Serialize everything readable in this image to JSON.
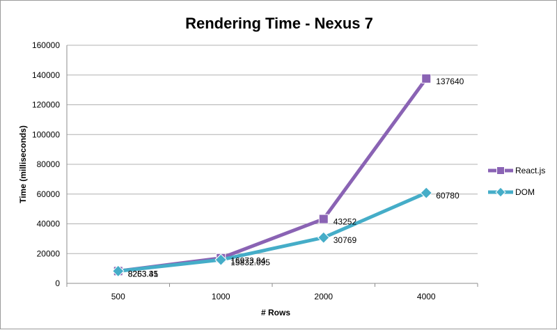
{
  "chart_data": {
    "type": "line",
    "title": "Rendering Time - Nexus 7",
    "xlabel": "# Rows",
    "ylabel": "Time (milliseconds)",
    "categories": [
      "500",
      "1000",
      "2000",
      "4000"
    ],
    "ylim": [
      0,
      160000
    ],
    "yticks": [
      0,
      20000,
      40000,
      60000,
      80000,
      100000,
      120000,
      140000,
      160000
    ],
    "grid": true,
    "legend_position": "right",
    "series": [
      {
        "name": "React.js",
        "color": "#8A63B4",
        "marker": "square",
        "values": [
          8263.35,
          16973.94,
          43252,
          137640
        ],
        "labels": [
          "8263.35",
          "16973.94",
          "43252",
          "137640"
        ]
      },
      {
        "name": "DOM",
        "color": "#45ADC8",
        "marker": "diamond",
        "values": [
          8253.41,
          15832.095,
          30769,
          60780
        ],
        "labels": [
          "8253.41",
          "15832.095",
          "30769",
          "60780"
        ]
      }
    ]
  }
}
